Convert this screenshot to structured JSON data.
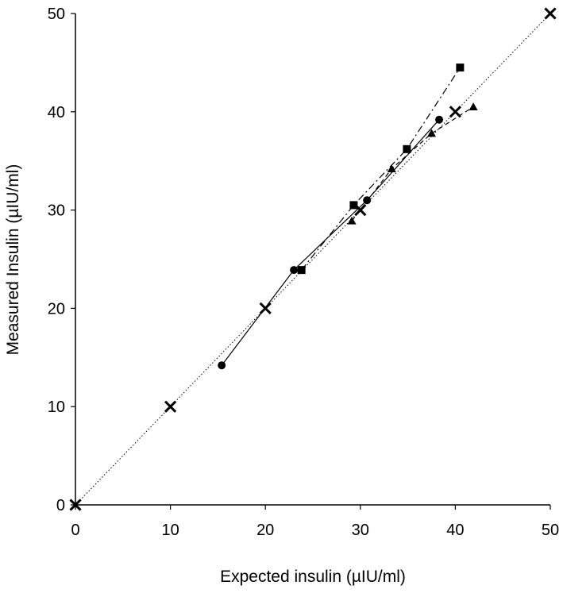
{
  "chart_data": {
    "type": "scatter",
    "xlabel": "Expected insulin (µIU/ml)",
    "ylabel": "Measured Insulin (µIU/ml)",
    "xlim": [
      0,
      50
    ],
    "ylim": [
      0,
      50
    ],
    "x_ticks": [
      "0",
      "10",
      "20",
      "30",
      "40",
      "50"
    ],
    "y_ticks": [
      "0",
      "10",
      "20",
      "30",
      "40",
      "50"
    ],
    "grid": false,
    "legend": "none",
    "identity_line": {
      "style": "dotted",
      "x": [
        0,
        50
      ],
      "y": [
        0,
        50
      ]
    },
    "series": [
      {
        "marker": "x",
        "line": "none",
        "points": [
          [
            0,
            0
          ],
          [
            10,
            10
          ],
          [
            20,
            20
          ],
          [
            30,
            30
          ],
          [
            40,
            40
          ],
          [
            50,
            50
          ]
        ]
      },
      {
        "marker": "circle",
        "line": "solid",
        "points": [
          [
            15.4,
            14.2
          ],
          [
            23.0,
            23.9
          ],
          [
            30.7,
            31.0
          ],
          [
            38.3,
            39.2
          ]
        ]
      },
      {
        "marker": "square",
        "line": "dash-dot",
        "points": [
          [
            23.8,
            23.9
          ],
          [
            29.3,
            30.5
          ],
          [
            34.9,
            36.2
          ],
          [
            40.5,
            44.5
          ]
        ]
      },
      {
        "marker": "triangle",
        "line": "dashed",
        "points": [
          [
            29.1,
            28.9
          ],
          [
            33.3,
            34.2
          ],
          [
            37.5,
            37.8
          ],
          [
            41.9,
            40.5
          ]
        ]
      }
    ]
  }
}
